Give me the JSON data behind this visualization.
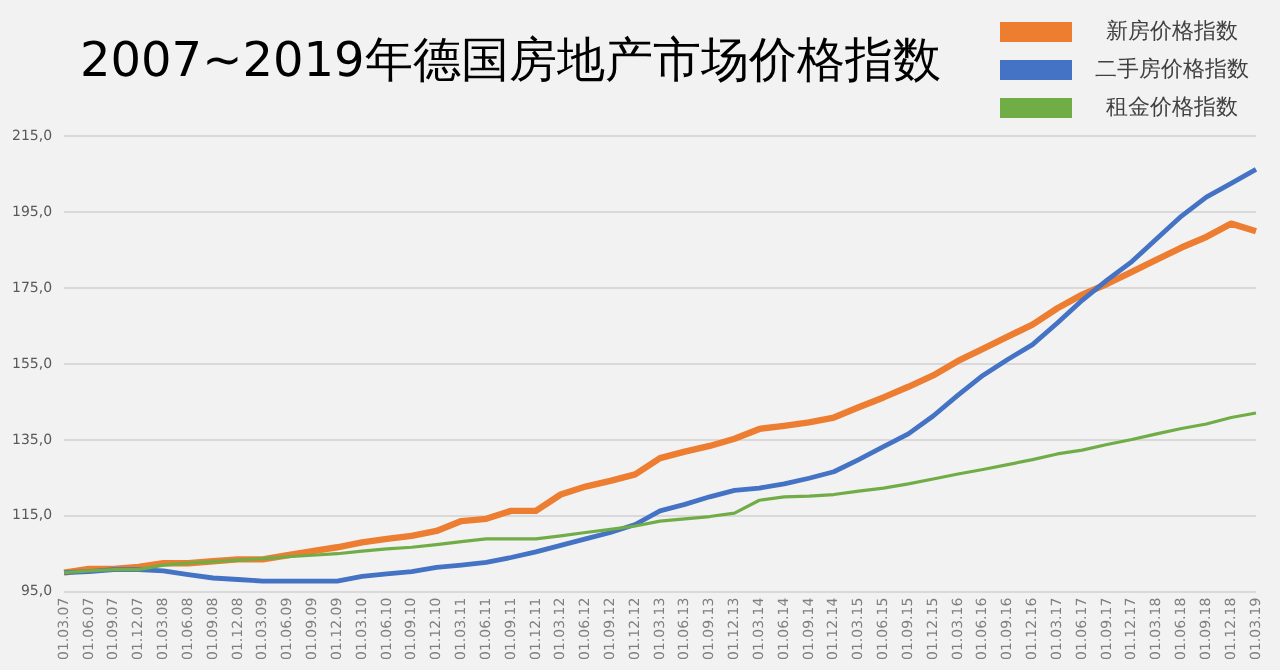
{
  "chart_data": {
    "type": "line",
    "title": "2007~2019年德国房地产市场价格指数",
    "categories": [
      "01.03.07",
      "01.06.07",
      "01.09.07",
      "01.12.07",
      "01.03.08",
      "01.06.08",
      "01.09.08",
      "01.12.08",
      "01.03.09",
      "01.06.09",
      "01.09.09",
      "01.12.09",
      "01.03.10",
      "01.06.10",
      "01.09.10",
      "01.12.10",
      "01.03.11",
      "01.06.11",
      "01.09.11",
      "01.12.11",
      "01.03.12",
      "01.06.12",
      "01.09.12",
      "01.12.12",
      "01.03.13",
      "01.06.13",
      "01.09.13",
      "01.12.13",
      "01.03.14",
      "01.06.14",
      "01.09.14",
      "01.12.14",
      "01.03.15",
      "01.06.15",
      "01.09.15",
      "01.12.15",
      "01.03.16",
      "01.06.16",
      "01.09.16",
      "01.12.16",
      "01.03.17",
      "01.06.17",
      "01.09.17",
      "01.12.17",
      "01.03.18",
      "01.06.18",
      "01.09.18",
      "01.12.18",
      "01.03.19"
    ],
    "series": [
      {
        "name": "新房价格指数",
        "color": "#ed7d31",
        "values": [
          100,
          101,
          101,
          101.5,
          102.5,
          102.5,
          103,
          103.5,
          103.5,
          104.6,
          105.7,
          106.7,
          108,
          108.9,
          109.7,
          111,
          113.6,
          114.2,
          116.3,
          116.3,
          120.6,
          122.7,
          124.2,
          125.9,
          130.2,
          131.9,
          133.4,
          135.3,
          137.9,
          138.7,
          139.6,
          140.9,
          143.6,
          146.2,
          149,
          152,
          155.8,
          159,
          162.2,
          165.4,
          169.7,
          173.3,
          176.1,
          179.3,
          182.5,
          185.7,
          188.5,
          192,
          190
        ]
      },
      {
        "name": "二手房价格指数",
        "color": "#4472c4",
        "values": [
          100,
          100.3,
          100.8,
          100.8,
          100.5,
          99.5,
          98.6,
          98.2,
          97.8,
          97.8,
          97.8,
          97.8,
          99,
          99.7,
          100.3,
          101.4,
          102,
          102.7,
          104,
          105.5,
          107.2,
          108.9,
          110.6,
          112.7,
          116.3,
          118,
          120,
          121.7,
          122.3,
          123.4,
          124.9,
          126.6,
          129.8,
          133.2,
          136.6,
          141.3,
          146.8,
          152,
          156.2,
          160.1,
          165.8,
          171.8,
          177.1,
          182,
          188,
          194,
          199,
          202.6,
          206.3
        ]
      },
      {
        "name": "租金价格指数",
        "color": "#70ad47",
        "values": [
          100,
          100.5,
          100.8,
          100.8,
          102,
          102.5,
          102.9,
          103.3,
          103.7,
          104.2,
          104.6,
          105,
          105.7,
          106.3,
          106.7,
          107.4,
          108.2,
          108.9,
          108.9,
          108.9,
          109.7,
          110.6,
          111.4,
          112.3,
          113.6,
          114.2,
          114.8,
          115.7,
          119.1,
          120,
          120.2,
          120.6,
          121.5,
          122.3,
          123.4,
          124.7,
          126,
          127.2,
          128.5,
          129.8,
          131.3,
          132.3,
          133.8,
          135.1,
          136.6,
          138,
          139.2,
          140.9,
          142.1
        ]
      }
    ],
    "ylim": [
      95,
      215
    ],
    "yticks": [
      {
        "value": 95,
        "label": "95,0"
      },
      {
        "value": 115,
        "label": "115,0"
      },
      {
        "value": 135,
        "label": "135,0"
      },
      {
        "value": 155,
        "label": "155,0"
      },
      {
        "value": 175,
        "label": "175,0"
      },
      {
        "value": 195,
        "label": "195,0"
      },
      {
        "value": 215,
        "label": "215,0"
      }
    ],
    "grid": "y",
    "legend": "top right",
    "marker": "none",
    "line_style": "solid"
  }
}
